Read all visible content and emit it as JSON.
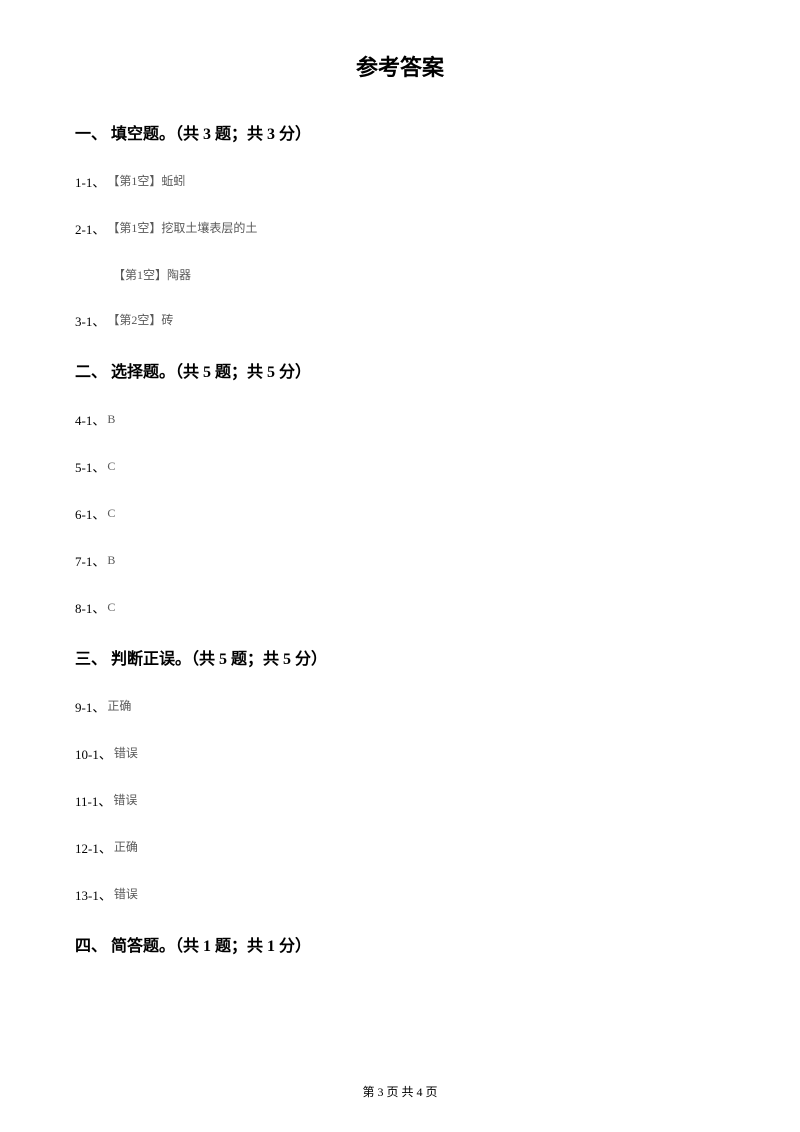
{
  "title": "参考答案",
  "sections": [
    {
      "header": "一、 填空题。（共 3 题；共 3 分）",
      "answers": [
        {
          "label": "1-1、",
          "value": "【第1空】蚯蚓"
        },
        {
          "label": "2-1、",
          "value": "【第1空】挖取土壤表层的土"
        },
        {
          "label": "",
          "value": "【第1空】陶器",
          "indent": true
        },
        {
          "label": "3-1、",
          "value": "【第2空】砖"
        }
      ]
    },
    {
      "header": "二、 选择题。（共 5 题；共 5 分）",
      "answers": [
        {
          "label": "4-1、",
          "value": "B"
        },
        {
          "label": "5-1、",
          "value": "C"
        },
        {
          "label": "6-1、",
          "value": "C"
        },
        {
          "label": "7-1、",
          "value": "B"
        },
        {
          "label": "8-1、",
          "value": "C"
        }
      ]
    },
    {
      "header": "三、 判断正误。（共 5 题；共 5 分）",
      "answers": [
        {
          "label": "9-1、",
          "value": "正确"
        },
        {
          "label": "10-1、",
          "value": "错误"
        },
        {
          "label": "11-1、",
          "value": "错误"
        },
        {
          "label": "12-1、",
          "value": "正确"
        },
        {
          "label": "13-1、",
          "value": "错误"
        }
      ]
    },
    {
      "header": "四、 简答题。（共 1 题；共 1 分）",
      "answers": []
    }
  ],
  "footer": "第 3 页 共 4 页"
}
